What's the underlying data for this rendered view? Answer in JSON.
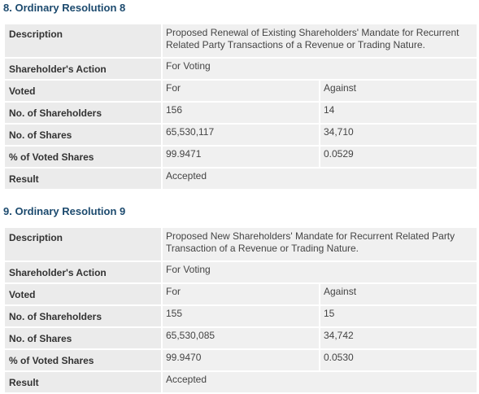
{
  "resolutions": [
    {
      "title": "8. Ordinary Resolution 8",
      "rows": {
        "description_label": "Description",
        "description_value": "Proposed Renewal of Existing Shareholders' Mandate for Recurrent Related Party Transactions of a Revenue or Trading Nature.",
        "action_label": "Shareholder's Action",
        "action_value": "For Voting",
        "voted_label": "Voted",
        "voted_for": "For",
        "voted_against": "Against",
        "shareholders_label": "No. of Shareholders",
        "shareholders_for": "156",
        "shareholders_against": "14",
        "shares_label": "No. of Shares",
        "shares_for": "65,530,117",
        "shares_against": "34,710",
        "percent_label": "% of Voted Shares",
        "percent_for": "99.9471",
        "percent_against": "0.0529",
        "result_label": "Result",
        "result_value": "Accepted"
      }
    },
    {
      "title": "9. Ordinary Resolution 9",
      "rows": {
        "description_label": "Description",
        "description_value": "Proposed New Shareholders' Mandate for Recurrent Related Party Transaction of a Revenue or Trading Nature.",
        "action_label": "Shareholder's Action",
        "action_value": "For Voting",
        "voted_label": "Voted",
        "voted_for": "For",
        "voted_against": "Against",
        "shareholders_label": "No. of Shareholders",
        "shareholders_for": "155",
        "shareholders_against": "15",
        "shares_label": "No. of Shares",
        "shares_for": "65,530,085",
        "shares_against": "34,742",
        "percent_label": "% of Voted Shares",
        "percent_for": "99.9470",
        "percent_against": "0.0530",
        "result_label": "Result",
        "result_value": "Accepted"
      }
    }
  ]
}
